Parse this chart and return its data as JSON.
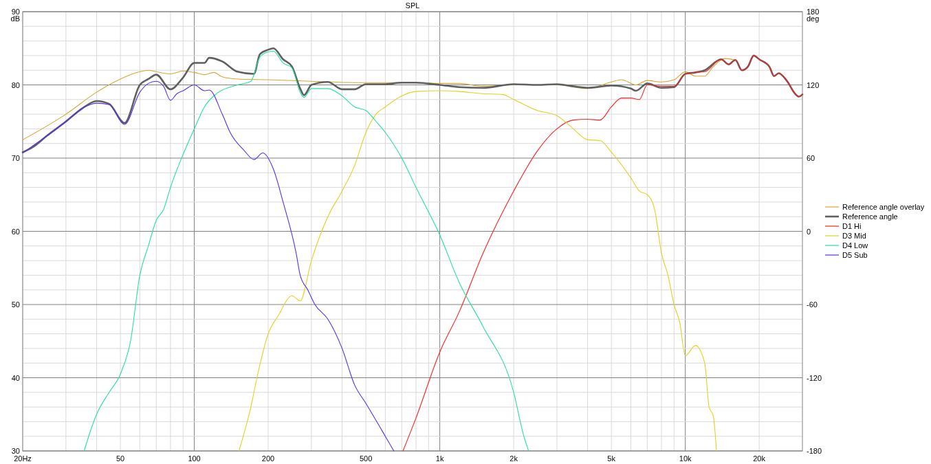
{
  "chart_data": {
    "type": "line",
    "title": "SPL",
    "ylabel": "dB",
    "y2label": "deg",
    "log": "x",
    "grid": true,
    "legend": "right",
    "xlim": [
      20,
      30000
    ],
    "xticks": [
      {
        "value": 20,
        "label": "20Hz"
      },
      {
        "value": 30,
        "label": null
      },
      {
        "value": 40,
        "label": null
      },
      50,
      {
        "value": 60,
        "label": null
      },
      {
        "value": 70,
        "label": null
      },
      {
        "value": 80,
        "label": null
      },
      {
        "value": 90,
        "label": null
      },
      100,
      200,
      {
        "value": 300,
        "label": null
      },
      {
        "value": 400,
        "label": null
      },
      500,
      {
        "value": 600,
        "label": null
      },
      {
        "value": 700,
        "label": null
      },
      {
        "value": 800,
        "label": null
      },
      {
        "value": 900,
        "label": null
      },
      {
        "value": 1000,
        "label": "1k"
      },
      {
        "value": 2000,
        "label": "2k"
      },
      {
        "value": 3000,
        "label": null
      },
      {
        "value": 4000,
        "label": null
      },
      {
        "value": 5000,
        "label": "5k"
      },
      {
        "value": 6000,
        "label": null
      },
      {
        "value": 7000,
        "label": null
      },
      {
        "value": 8000,
        "label": null
      },
      {
        "value": 9000,
        "label": null
      },
      {
        "value": 10000,
        "label": "10k"
      },
      {
        "value": 20000,
        "label": "20k"
      }
    ],
    "ylim": [
      30,
      90
    ],
    "yticks": [
      30,
      {
        "value": 32,
        "label": null
      },
      {
        "value": 34,
        "label": null
      },
      {
        "value": 36,
        "label": null
      },
      {
        "value": 38,
        "label": null
      },
      40,
      {
        "value": 42,
        "label": null
      },
      {
        "value": 44,
        "label": null
      },
      {
        "value": 46,
        "label": null
      },
      {
        "value": 48,
        "label": null
      },
      50,
      {
        "value": 52,
        "label": null
      },
      {
        "value": 54,
        "label": null
      },
      {
        "value": 56,
        "label": null
      },
      {
        "value": 58,
        "label": null
      },
      60,
      {
        "value": 62,
        "label": null
      },
      {
        "value": 64,
        "label": null
      },
      {
        "value": 66,
        "label": null
      },
      {
        "value": 68,
        "label": null
      },
      70,
      {
        "value": 72,
        "label": null
      },
      {
        "value": 74,
        "label": null
      },
      {
        "value": 76,
        "label": null
      },
      {
        "value": 78,
        "label": null
      },
      80,
      {
        "value": 82,
        "label": null
      },
      {
        "value": 84,
        "label": null
      },
      {
        "value": 86,
        "label": null
      },
      {
        "value": 88,
        "label": null
      },
      90
    ],
    "y2lim": [
      -180,
      180
    ],
    "y2ticks": [
      -180,
      -120,
      -60,
      0,
      60,
      120,
      180
    ],
    "series": [
      {
        "name": "Reference angle overlay",
        "color": "#d9a531",
        "x": [
          20,
          30,
          40,
          50,
          60,
          65,
          70,
          80,
          90,
          100,
          110,
          120,
          130,
          150,
          200,
          300,
          500,
          800,
          1000,
          1200,
          1500,
          2000,
          3000,
          4000,
          5000,
          5500,
          6300,
          7000,
          8000,
          9000,
          10000,
          11000,
          12000,
          13000,
          14500,
          16000
        ],
        "values": [
          72.5,
          76,
          79,
          80.8,
          81.8,
          82,
          81.8,
          81.5,
          81.9,
          81.7,
          81.4,
          81.7,
          81.1,
          80.8,
          80.7,
          80.5,
          80.3,
          80.3,
          80.2,
          80.2,
          79.8,
          80,
          80,
          79.5,
          80.4,
          80.7,
          80,
          80.6,
          80.4,
          80.7,
          81.8,
          81.2,
          81.2,
          82.5,
          83.6,
          83.4
        ]
      },
      {
        "name": "Reference angle",
        "color": "#5f5f5f",
        "x": [
          20,
          22,
          25,
          30,
          35,
          40,
          45,
          52,
          60,
          65,
          70,
          80,
          90,
          100,
          110,
          115,
          130,
          150,
          175,
          185,
          200,
          210,
          230,
          250,
          270,
          280,
          300,
          350,
          400,
          450,
          500,
          600,
          700,
          800,
          1000,
          1200,
          1500,
          2000,
          2500,
          3000,
          3500,
          4000,
          5000,
          6000,
          6300,
          7000,
          8000,
          9000,
          10000,
          11000,
          12000,
          14000,
          15000,
          16000,
          17000,
          18000,
          19000,
          20000,
          22000,
          23000,
          24000,
          26000,
          28000,
          29000,
          30000
        ],
        "values": [
          70.8,
          71.5,
          73,
          75,
          76.8,
          77.8,
          77.4,
          74.8,
          80,
          80.8,
          81.4,
          79.4,
          81,
          83,
          83,
          83.7,
          83.2,
          81.8,
          81.5,
          84.2,
          84.8,
          85,
          83.5,
          82.5,
          79.5,
          78.6,
          80,
          80.4,
          79.4,
          79.4,
          80.1,
          80.1,
          80.3,
          80.3,
          80,
          79.7,
          79.6,
          80.1,
          80,
          80.1,
          79.8,
          79.6,
          79.9,
          79.5,
          79.2,
          80.2,
          79.6,
          79.7,
          81.5,
          81.7,
          82,
          83.5,
          82.8,
          83.4,
          82,
          82.5,
          84,
          83.5,
          82.5,
          81.2,
          81.6,
          80.5,
          78.8,
          78.4,
          78.7
        ]
      },
      {
        "name": "D1 Hi",
        "color": "#ff1f1f",
        "x": [
          708,
          800,
          1000,
          1200,
          1500,
          2000,
          2500,
          3000,
          3500,
          4000,
          4500,
          5000,
          5500,
          6000,
          6500,
          7000,
          8000,
          9000,
          10000,
          11000,
          12000,
          14000,
          15000,
          16000,
          17000,
          18000,
          19000,
          20000,
          22000,
          23000,
          24000,
          26000,
          28000,
          29000,
          30000
        ],
        "values": [
          30,
          34.5,
          43.5,
          49,
          57,
          65.5,
          71,
          74,
          75.2,
          75.3,
          75.2,
          77,
          78.2,
          78.2,
          78,
          80,
          79.8,
          79.8,
          81.5,
          81.7,
          81.8,
          83.5,
          82.8,
          83.4,
          82,
          82.5,
          84,
          83.5,
          82.5,
          81.2,
          81.6,
          80.5,
          78.8,
          78.4,
          78.7
        ]
      },
      {
        "name": "D3 Mid",
        "color": "#e0d21e",
        "x": [
          152,
          170,
          180,
          200,
          220,
          250,
          270,
          300,
          350,
          400,
          450,
          500,
          550,
          600,
          700,
          800,
          1000,
          1200,
          1500,
          1800,
          2000,
          2500,
          3000,
          3500,
          4000,
          4500,
          5000,
          6000,
          6500,
          7000,
          7500,
          8000,
          8500,
          9000,
          9500,
          10000,
          11000,
          12000,
          12500,
          13000,
          13400
        ],
        "values": [
          30,
          36,
          40,
          46,
          48.5,
          51.2,
          50.5,
          56,
          62,
          65.5,
          69,
          73.5,
          76,
          77,
          78.5,
          79.1,
          79.2,
          79.1,
          78.8,
          78.7,
          78,
          76.5,
          75.8,
          74,
          72.5,
          72.4,
          70.8,
          67.3,
          65.5,
          65,
          63,
          57,
          54,
          50,
          47.5,
          43,
          44.4,
          42,
          36,
          34.8,
          30
        ]
      },
      {
        "name": "D4 Low",
        "color": "#22e39b",
        "x": [
          35.6,
          38,
          40,
          45,
          50,
          55,
          60,
          65,
          70,
          75,
          80,
          90,
          100,
          110,
          120,
          150,
          170,
          185,
          200,
          210,
          230,
          250,
          270,
          280,
          300,
          350,
          400,
          450,
          500,
          550,
          600,
          700,
          800,
          1000,
          1200,
          1500,
          2000,
          2200,
          2300
        ],
        "values": [
          30,
          33,
          35,
          38,
          40.5,
          45,
          54,
          58,
          61.5,
          63,
          66,
          70.5,
          74,
          77,
          78.5,
          80,
          80.5,
          83.8,
          84.5,
          84.6,
          83,
          82.3,
          79,
          78.3,
          79.5,
          79.5,
          78.5,
          77,
          76.5,
          75,
          73.5,
          70,
          66,
          59.5,
          53,
          47,
          38,
          32,
          30
        ]
      },
      {
        "name": "D5 Sub",
        "color": "#5a2df0",
        "x": [
          20,
          25,
          30,
          35,
          40,
          45,
          52,
          60,
          65,
          70,
          75,
          80,
          85,
          90,
          100,
          110,
          115,
          130,
          140,
          160,
          175,
          190,
          210,
          230,
          260,
          270,
          290,
          310,
          350,
          400,
          450,
          500,
          600,
          650
        ],
        "values": [
          70.7,
          73,
          75,
          76.8,
          77.5,
          77.3,
          74.6,
          79,
          80.2,
          80.5,
          79.8,
          77.9,
          78.8,
          79.2,
          80,
          79.2,
          79.3,
          76,
          73.5,
          71,
          69.8,
          70.7,
          68.5,
          64,
          57,
          54,
          52,
          50,
          48,
          44,
          39,
          36.5,
          32,
          30
        ]
      }
    ]
  }
}
